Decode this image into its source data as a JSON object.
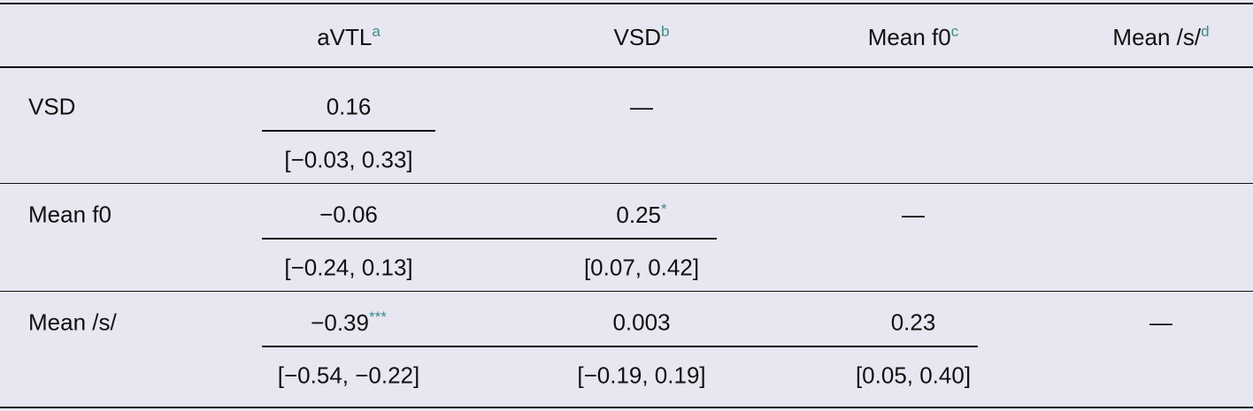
{
  "header": {
    "columns": [
      {
        "text": "aVTL",
        "note": "a"
      },
      {
        "text": "VSD",
        "note": "b"
      },
      {
        "text": "Mean f0",
        "note": "c"
      },
      {
        "text": "Mean /s/",
        "note": "d"
      }
    ]
  },
  "rows": [
    {
      "label": "VSD",
      "cells": [
        {
          "estimate": "0.16",
          "ci": "[−0.03, 0.33]"
        },
        {
          "estimate": "—"
        }
      ]
    },
    {
      "label": "Mean f0",
      "cells": [
        {
          "estimate": "−0.06",
          "ci": "[−0.24, 0.13]"
        },
        {
          "estimate": "0.25",
          "stars": "*",
          "ci": "[0.07, 0.42]"
        },
        {
          "estimate": "—"
        }
      ]
    },
    {
      "label": "Mean /s/",
      "cells": [
        {
          "estimate": "−0.39",
          "stars": "***",
          "ci": "[−0.54, −0.22]"
        },
        {
          "estimate": "0.003",
          "ci": "[−0.19, 0.19]"
        },
        {
          "estimate": "0.23",
          "ci": "[0.05, 0.40]"
        },
        {
          "estimate": "—"
        }
      ]
    }
  ]
}
